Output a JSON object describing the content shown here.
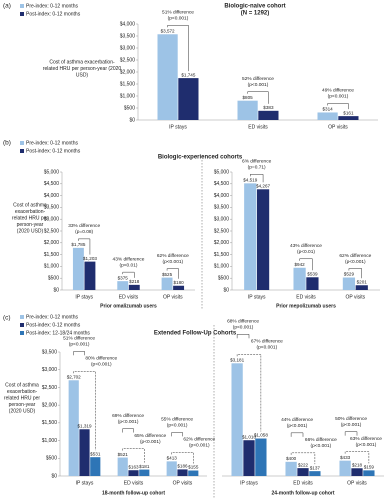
{
  "chart_data": [
    {
      "type": "bar",
      "panel_label": "(a)",
      "title": [
        "Biologic-naive cohort",
        "(N = 1292)"
      ],
      "ylabel": [
        "Cost of asthma exacerbation-",
        "related HRU per person-year (2020",
        "USD)"
      ],
      "series": [
        {
          "name": "Pre-index: 0-12 months",
          "color": "#9dc3e6"
        },
        {
          "name": "Post-index: 0-12 months",
          "color": "#1f2d6e"
        }
      ],
      "charts": [
        {
          "categories": [
            "IP stays",
            "ED visits",
            "OP visits"
          ],
          "ylim": [
            0,
            4000
          ],
          "yticks": [
            {
              "value": 0,
              "label": "$0"
            },
            {
              "value": 500,
              "label": "$500"
            },
            {
              "value": 1000,
              "label": "$1,000"
            },
            {
              "value": 1500,
              "label": "$1,500"
            },
            {
              "value": 2000,
              "label": "$2,000"
            },
            {
              "value": 2500,
              "label": "$2,500"
            },
            {
              "value": 3000,
              "label": "$3,000"
            },
            {
              "value": 3500,
              "label": "$3,500"
            },
            {
              "value": 4000,
              "label": "$4,000"
            }
          ],
          "series": [
            {
              "values": [
                3572,
                805,
                314
              ],
              "value_labels": [
                "$3,572",
                "$805",
                "$314"
              ]
            },
            {
              "values": [
                1745,
                383,
                161
              ],
              "value_labels": [
                "$1,745",
                "$383",
                "$161"
              ]
            }
          ],
          "annotations": [
            [
              [
                "51% difference",
                "(p<0.001)"
              ]
            ],
            [
              [
                "52% difference",
                "(p<0.001)"
              ]
            ],
            [
              [
                "49% difference",
                "(p<0.001)"
              ]
            ]
          ]
        }
      ]
    },
    {
      "type": "bar",
      "panel_label": "(b)",
      "title": [
        "Biologic-experienced cohorts"
      ],
      "ylabel": [
        "Cost of asthma",
        "exacerbation-",
        "related HRU per",
        "person-year",
        "(2020 USD)"
      ],
      "series": [
        {
          "name": "Pre-index: 0-12 months",
          "color": "#9dc3e6"
        },
        {
          "name": "Post-index: 0-12 months",
          "color": "#1f2d6e"
        }
      ],
      "charts": [
        {
          "xlabel": "Prior omalizumab users",
          "categories": [
            "IP stays",
            "ED visits",
            "OP visits"
          ],
          "ylim": [
            0,
            5000
          ],
          "yticks": [
            {
              "value": 0,
              "label": "$0"
            },
            {
              "value": 500,
              "label": "$500"
            },
            {
              "value": 1000,
              "label": "$1,000"
            },
            {
              "value": 1500,
              "label": "$1,500"
            },
            {
              "value": 2000,
              "label": "$2,000"
            },
            {
              "value": 2500,
              "label": "$2,500"
            },
            {
              "value": 3000,
              "label": "$3,000"
            },
            {
              "value": 3500,
              "label": "$3,500"
            },
            {
              "value": 4000,
              "label": "$4,000"
            },
            {
              "value": 4500,
              "label": "$4,500"
            },
            {
              "value": 5000,
              "label": "$5,000"
            }
          ],
          "series": [
            {
              "values": [
                1785,
                375,
                525
              ],
              "value_labels": [
                "$1,785",
                "$375",
                "$525"
              ]
            },
            {
              "values": [
                1203,
                218,
                180
              ],
              "value_labels": [
                "$1,203",
                "$218",
                "$180"
              ]
            }
          ],
          "annotations": [
            [
              [
                "33% difference",
                "(p=0.08)"
              ]
            ],
            [
              [
                "43% difference",
                "(p<0.01)"
              ]
            ],
            [
              [
                "62% difference",
                "(p<0.001)"
              ]
            ]
          ]
        },
        {
          "xlabel": "Prior mepolizumab users",
          "categories": [
            "IP stays",
            "ED visits",
            "OP visits"
          ],
          "ylim": [
            0,
            5000
          ],
          "yticks": [
            {
              "value": 0,
              "label": "$0"
            },
            {
              "value": 500,
              "label": "$500"
            },
            {
              "value": 1000,
              "label": "$1,000"
            },
            {
              "value": 1500,
              "label": "$1,500"
            },
            {
              "value": 2000,
              "label": "$2,000"
            },
            {
              "value": 2500,
              "label": "$2,500"
            },
            {
              "value": 3000,
              "label": "$3,000"
            },
            {
              "value": 3500,
              "label": "$3,500"
            },
            {
              "value": 4000,
              "label": "$4,000"
            },
            {
              "value": 4500,
              "label": "$4,500"
            },
            {
              "value": 5000,
              "label": "$5,000"
            }
          ],
          "series": [
            {
              "values": [
                4519,
                942,
                529
              ],
              "value_labels": [
                "$4,519",
                "$942",
                "$529"
              ]
            },
            {
              "values": [
                4267,
                539,
                201
              ],
              "value_labels": [
                "$4,267",
                "$539",
                "$201"
              ]
            }
          ],
          "annotations": [
            [
              [
                "6% difference",
                "(p=0.71)"
              ]
            ],
            [
              [
                "43% difference",
                "(p<0.01)"
              ]
            ],
            [
              [
                "62% difference",
                "(p<0.001)"
              ]
            ]
          ]
        }
      ]
    },
    {
      "type": "bar",
      "panel_label": "(c)",
      "title": [
        "Extended Follow-Up Cohorts"
      ],
      "ylabel": [
        "Cost of asthma",
        "exacerbation-",
        "related HRU per",
        "person-year",
        "(2020 USD)"
      ],
      "series": [
        {
          "name": "Pre-index: 0-12 months",
          "color": "#9dc3e6"
        },
        {
          "name": "Post-index: 0-12 months",
          "color": "#1f2d6e"
        },
        {
          "name": "Post-index: 12-18/24 months",
          "color": "#2e75b6"
        }
      ],
      "charts": [
        {
          "xlabel": "18-month follow-up cohort",
          "categories": [
            "IP stays",
            "ED visits",
            "OP visits"
          ],
          "ylim": [
            0,
            3500
          ],
          "yticks": [
            {
              "value": 0,
              "label": "$0"
            },
            {
              "value": 500,
              "label": "$500"
            },
            {
              "value": 1000,
              "label": "$1,000"
            },
            {
              "value": 1500,
              "label": "$1,500"
            },
            {
              "value": 2000,
              "label": "$2,000"
            },
            {
              "value": 2500,
              "label": "$2,500"
            },
            {
              "value": 3000,
              "label": "$3,000"
            },
            {
              "value": 3500,
              "label": "$3,500"
            }
          ],
          "series": [
            {
              "values": [
                2702,
                521,
                413
              ],
              "value_labels": [
                "$2,702",
                "$521",
                "$413"
              ]
            },
            {
              "values": [
                1319,
                163,
                186
              ],
              "value_labels": [
                "$1,319",
                "$163",
                "$186"
              ]
            },
            {
              "values": [
                531,
                181,
                155
              ],
              "value_labels": [
                "$531",
                "$181",
                "$155"
              ]
            }
          ],
          "annotations": [
            [
              [
                "51% difference",
                "(p<0.001)"
              ],
              [
                "80% difference",
                "(p<0.001)"
              ]
            ],
            [
              [
                "69% difference",
                "(p<0.001)"
              ],
              [
                "65% difference",
                "(p<0.001)"
              ]
            ],
            [
              [
                "55% difference",
                "(p<0.001)"
              ],
              [
                "62% difference",
                "(p<0.001)"
              ]
            ]
          ]
        },
        {
          "xlabel": "24-month follow-up cohort",
          "categories": [
            "IP stays",
            "ED visits",
            "OP visits"
          ],
          "ylim": [
            0,
            3500
          ],
          "series": [
            {
              "values": [
                3181,
                400,
                433
              ],
              "value_labels": [
                "$3,181",
                "$400",
                "$433"
              ]
            },
            {
              "values": [
                1010,
                222,
                218
              ],
              "value_labels": [
                "$1,010",
                "$222",
                "$218"
              ]
            },
            {
              "values": [
                1058,
                137,
                159
              ],
              "value_labels": [
                "$1,058",
                "$137",
                "$159"
              ]
            }
          ],
          "annotations": [
            [
              [
                "68% difference",
                "(p<0.001)"
              ],
              [
                "67% difference",
                "(p<0.001)"
              ]
            ],
            [
              [
                "44% difference",
                "(p<0.001)"
              ],
              [
                "66% difference",
                "(p<0.001)"
              ]
            ],
            [
              [
                "50% difference",
                "(p<0.001)"
              ],
              [
                "63% difference",
                "(p<0.001)"
              ]
            ]
          ]
        }
      ]
    }
  ]
}
